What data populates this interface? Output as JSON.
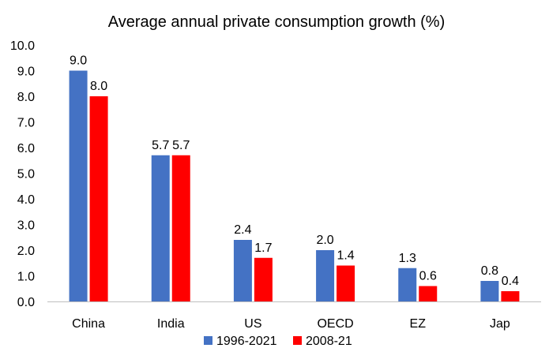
{
  "chart_data": {
    "type": "bar",
    "title": "Average annual private consumption growth (%)",
    "xlabel": "",
    "ylabel": "",
    "categories": [
      "China",
      "India",
      "US",
      "OECD",
      "EZ",
      "Jap"
    ],
    "series": [
      {
        "name": "1996-2021",
        "values": [
          9.0,
          5.7,
          2.4,
          2.0,
          1.3,
          0.8
        ],
        "color": "#4472C4"
      },
      {
        "name": "2008-21",
        "values": [
          8.0,
          5.7,
          1.7,
          1.4,
          0.6,
          0.4
        ],
        "color": "#FF0000"
      }
    ],
    "data_labels": [
      [
        "9.0",
        "5.7",
        "2.4",
        "2.0",
        "1.3",
        "0.8"
      ],
      [
        "8.0",
        "5.7",
        "1.7",
        "1.4",
        "0.6",
        "0.4"
      ]
    ],
    "ylim": [
      0,
      10
    ],
    "yticks": [
      "0.0",
      "1.0",
      "2.0",
      "3.0",
      "4.0",
      "5.0",
      "6.0",
      "7.0",
      "8.0",
      "9.0",
      "10.0"
    ],
    "grid": false,
    "legend_position": "bottom"
  }
}
